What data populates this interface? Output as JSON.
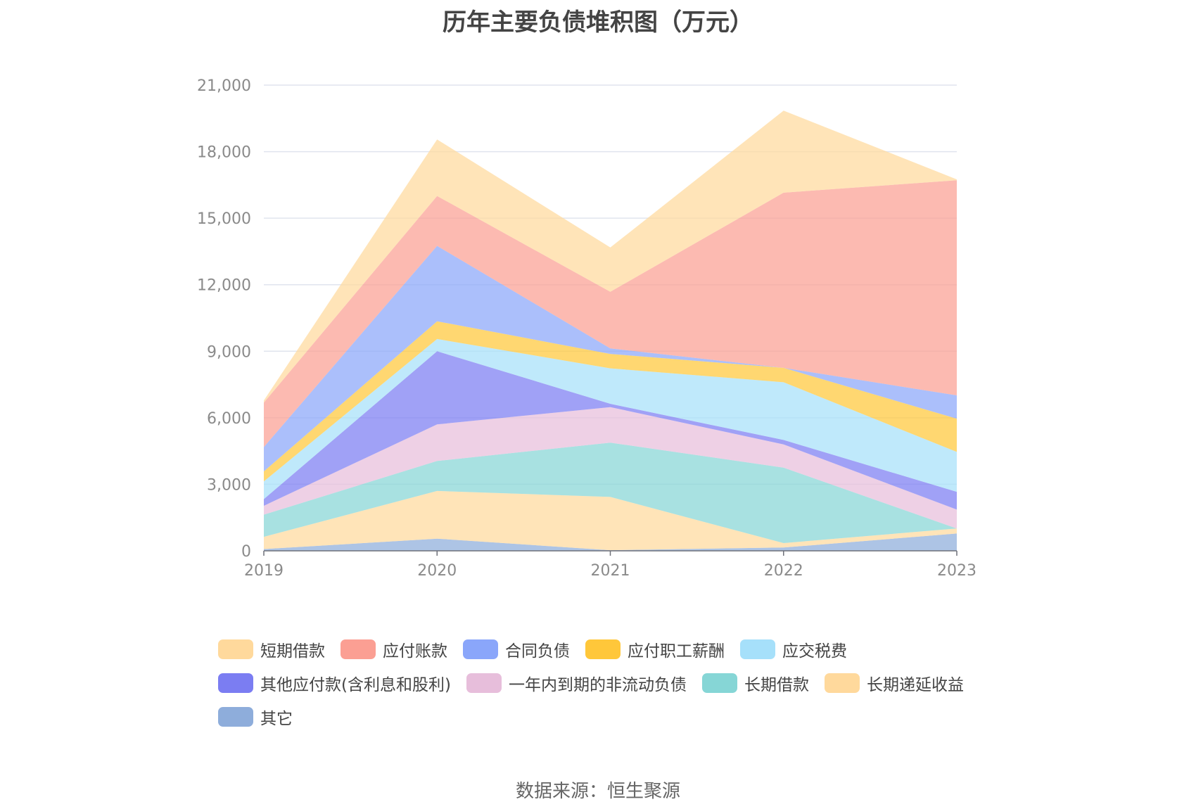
{
  "chart_data": {
    "type": "area",
    "stacked": true,
    "title": "历年主要负债堆积图（万元）",
    "xlabel": "",
    "ylabel": "",
    "x": [
      "2019",
      "2020",
      "2021",
      "2022",
      "2023"
    ],
    "ylim": [
      0,
      21000
    ],
    "yticks": [
      0,
      3000,
      6000,
      9000,
      12000,
      15000,
      18000,
      21000
    ],
    "ytick_labels": [
      "0",
      "3,000",
      "6,000",
      "9,000",
      "12,000",
      "15,000",
      "18,000",
      "21,000"
    ],
    "grid": true,
    "legend_position": "bottom",
    "series": [
      {
        "name": "其它",
        "color": "#8EADDB",
        "values": [
          80,
          550,
          30,
          150,
          780
        ]
      },
      {
        "name": "长期递延收益",
        "color": "#FFD99C",
        "values": [
          550,
          2150,
          2400,
          200,
          230
        ]
      },
      {
        "name": "长期借款",
        "color": "#86D6D6",
        "values": [
          1000,
          1350,
          2450,
          3400,
          0
        ]
      },
      {
        "name": "一年内到期的非流动负债",
        "color": "#E7BEDB",
        "values": [
          400,
          1650,
          1600,
          1050,
          850
        ]
      },
      {
        "name": "其他应付款(含利息和股利)",
        "color": "#7B7DF2",
        "values": [
          300,
          3300,
          150,
          200,
          800
        ]
      },
      {
        "name": "应交税费",
        "color": "#A6E0FA",
        "values": [
          800,
          550,
          1600,
          2600,
          1800
        ]
      },
      {
        "name": "应付职工薪酬",
        "color": "#FFC73A",
        "values": [
          450,
          800,
          650,
          650,
          1500
        ]
      },
      {
        "name": "合同负债",
        "color": "#8AA6FA",
        "values": [
          1100,
          3400,
          250,
          0,
          1050
        ]
      },
      {
        "name": "应付账款",
        "color": "#FB9F93",
        "values": [
          2000,
          2250,
          2550,
          7900,
          9700
        ]
      },
      {
        "name": "短期借款",
        "color": "#FFD99C",
        "values": [
          100,
          2550,
          2000,
          3700,
          40
        ]
      }
    ],
    "legend_order": [
      "短期借款",
      "应付账款",
      "合同负债",
      "应付职工薪酬",
      "应交税费",
      "其他应付款(含利息和股利)",
      "一年内到期的非流动负债",
      "长期借款",
      "长期递延收益",
      "其它"
    ]
  },
  "source": "数据来源：恒生聚源"
}
